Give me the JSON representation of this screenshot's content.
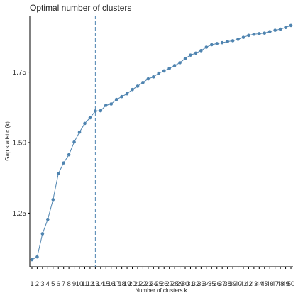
{
  "chart_data": {
    "type": "line",
    "title": "Optimal number of clusters",
    "xlabel": "Number of clusters k",
    "ylabel": "Gap statistic (k)",
    "x": [
      1,
      2,
      3,
      4,
      5,
      6,
      7,
      8,
      9,
      10,
      11,
      12,
      13,
      14,
      15,
      16,
      17,
      18,
      19,
      20,
      21,
      22,
      23,
      24,
      25,
      26,
      27,
      28,
      29,
      30,
      31,
      32,
      33,
      34,
      35,
      36,
      37,
      38,
      39,
      40,
      41,
      42,
      43,
      44,
      45,
      46,
      47,
      48,
      49,
      50
    ],
    "x_tick_labels": [
      "1",
      "2",
      "3",
      "4",
      "5",
      "6",
      "7",
      "8",
      "9",
      "10",
      "11",
      "12",
      "13",
      "14",
      "15",
      "16",
      "17",
      "18",
      "19",
      "20",
      "21",
      "22",
      "23",
      "24",
      "25",
      "26",
      "27",
      "28",
      "29",
      "30",
      "31",
      "32",
      "33",
      "34",
      "35",
      "36",
      "37",
      "38",
      "39",
      "40",
      "41",
      "42",
      "43",
      "44",
      "45",
      "46",
      "47",
      "48",
      "49",
      "50"
    ],
    "series": [
      {
        "values": [
          1.085,
          1.095,
          1.177,
          1.228,
          1.298,
          1.39,
          1.428,
          1.457,
          1.502,
          1.537,
          1.568,
          1.588,
          1.612,
          1.613,
          1.632,
          1.637,
          1.653,
          1.663,
          1.673,
          1.688,
          1.7,
          1.713,
          1.726,
          1.733,
          1.746,
          1.754,
          1.763,
          1.773,
          1.783,
          1.798,
          1.81,
          1.817,
          1.826,
          1.838,
          1.847,
          1.851,
          1.854,
          1.858,
          1.861,
          1.866,
          1.873,
          1.88,
          1.884,
          1.886,
          1.888,
          1.893,
          1.898,
          1.902,
          1.908,
          1.915
        ],
        "color": "#4f84b0"
      }
    ],
    "optimal_k": 13,
    "vline_color": "#4f84b0",
    "ylim": [
      1.06,
      1.95
    ],
    "xlim": [
      0.6,
      50.4
    ],
    "y_ticks": [
      1.25,
      1.5,
      1.75
    ],
    "y_tick_labels": [
      "1.25",
      "1.50",
      "1.75"
    ],
    "grid": false,
    "legend": "none"
  }
}
